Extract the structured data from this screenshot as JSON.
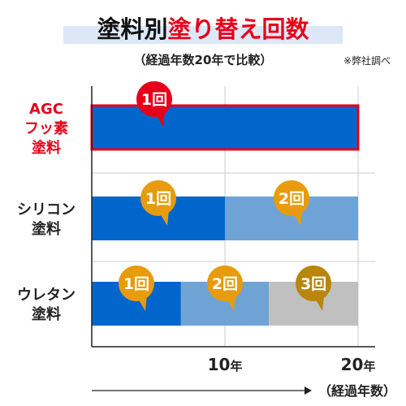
{
  "chart_data": {
    "type": "bar",
    "orientation": "horizontal",
    "stacked": true,
    "title_prefix": "塗料別",
    "title_highlight": "塗り替え回数",
    "subtitle": "（経過年数20年で比較）",
    "note": "※弊社調べ",
    "xlabel": "（経過年数）",
    "xlim": [
      0,
      20
    ],
    "xticks": [
      {
        "value": 10,
        "num": "10",
        "unit": "年"
      },
      {
        "value": 20,
        "num": "20",
        "unit": "年"
      }
    ],
    "grid": true,
    "categories": [
      {
        "lines": [
          "AGC",
          "フッ素",
          "塗料"
        ],
        "highlight": true
      },
      {
        "lines": [
          "シリコン",
          "塗料"
        ],
        "highlight": false
      },
      {
        "lines": [
          "ウレタン",
          "塗料"
        ],
        "highlight": false
      }
    ],
    "rows": [
      {
        "segments": [
          {
            "start": 0,
            "end": 20,
            "color": "#0066cc",
            "label": "1回",
            "badge": "#e6001a"
          }
        ]
      },
      {
        "segments": [
          {
            "start": 0,
            "end": 10,
            "color": "#0066cc",
            "label": "1回",
            "badge": "#e89b0c"
          },
          {
            "start": 10,
            "end": 20,
            "color": "#6fa3d6",
            "label": "2回",
            "badge": "#e89b0c"
          }
        ]
      },
      {
        "segments": [
          {
            "start": 0,
            "end": 6.7,
            "color": "#0066cc",
            "label": "1回",
            "badge": "#e89b0c"
          },
          {
            "start": 6.7,
            "end": 13.3,
            "color": "#6fa3d6",
            "label": "2回",
            "badge": "#e89b0c"
          },
          {
            "start": 13.3,
            "end": 20,
            "color": "#c0c0c0",
            "label": "3回",
            "badge": "#b8860b"
          }
        ]
      }
    ],
    "colors": {
      "highlight_text": "#e6001a",
      "highlight_border": "#e6001a",
      "title_band": "#dce8f7",
      "axis": "#222222",
      "grid": "#cccccc"
    }
  }
}
